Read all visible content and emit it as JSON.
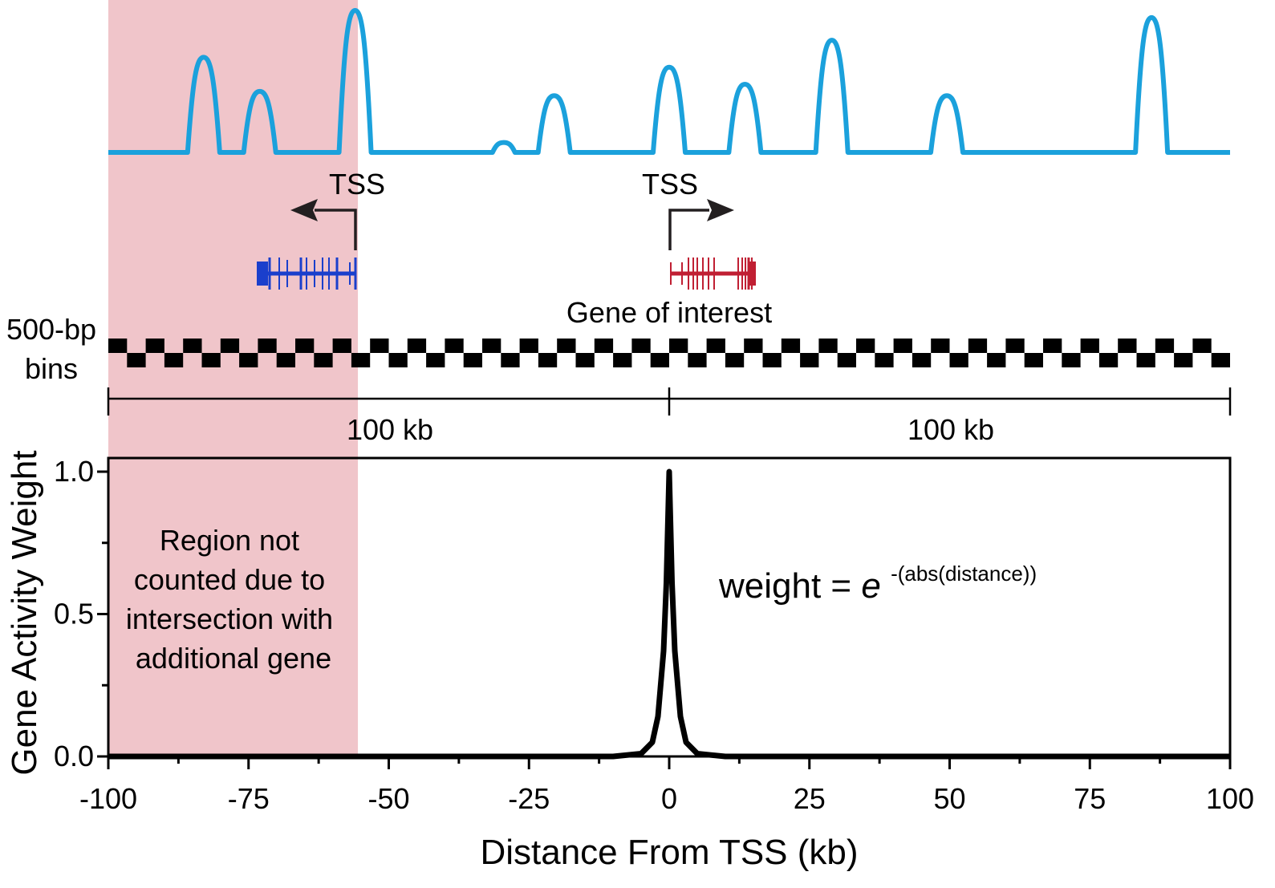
{
  "colors": {
    "signal": "#1ba1dc",
    "excluded_region": "#f0c5ca",
    "left_gene": "#1a3fcc",
    "right_gene": "#c01f33",
    "ink": "#000000",
    "arrow": "#231f20"
  },
  "signal_track": {
    "peaks": [
      {
        "center_kb": -83.0,
        "height": 0.67
      },
      {
        "center_kb": -73.0,
        "height": 0.43
      },
      {
        "center_kb": -56.0,
        "height": 1.0
      },
      {
        "center_kb": -29.5,
        "height": 0.07
      },
      {
        "center_kb": -20.5,
        "height": 0.4
      },
      {
        "center_kb": 0.0,
        "height": 0.6
      },
      {
        "center_kb": 13.5,
        "height": 0.48
      },
      {
        "center_kb": 29.0,
        "height": 0.79
      },
      {
        "center_kb": 49.5,
        "height": 0.4
      },
      {
        "center_kb": 86.0,
        "height": 0.95
      }
    ]
  },
  "annotations": {
    "tss_left_label": "TSS",
    "tss_right_label": "TSS",
    "gene_label": "Gene of interest",
    "bins_label_line1": "500-bp",
    "bins_label_line2": "bins",
    "span_left_label": "100 kb",
    "span_right_label": "100 kb",
    "region_note": [
      "Region not",
      "counted due to",
      "intersection with",
      "additional gene"
    ],
    "formula_prefix": "weight = ",
    "formula_base": "e",
    "formula_exponent": "-(abs(distance))"
  },
  "excluded_region_kb": [
    -100,
    -55.5
  ],
  "chart_data": {
    "type": "line",
    "xlabel": "Distance From TSS (kb)",
    "ylabel": "Gene Activity Weight",
    "xlim": [
      -100,
      100
    ],
    "ylim": [
      0,
      1.0
    ],
    "x_ticks": [
      -100,
      -75,
      -50,
      -25,
      0,
      25,
      50,
      75,
      100
    ],
    "x_tick_labels": [
      "-100",
      "-75",
      "-50",
      "-25",
      "0",
      "25",
      "50",
      "75",
      "100"
    ],
    "y_ticks": [
      0,
      0.5,
      1.0
    ],
    "y_tick_labels": [
      "0.0",
      "0.5",
      "1.0"
    ],
    "series": [
      {
        "x": [
          -100,
          -10,
          -5,
          -3,
          -2,
          -1,
          -0.5,
          0,
          0.5,
          1,
          2,
          3,
          5,
          10,
          100
        ],
        "y": [
          0,
          0,
          0.01,
          0.05,
          0.14,
          0.37,
          0.61,
          1.0,
          0.61,
          0.37,
          0.14,
          0.05,
          0.01,
          0,
          0
        ]
      }
    ]
  }
}
